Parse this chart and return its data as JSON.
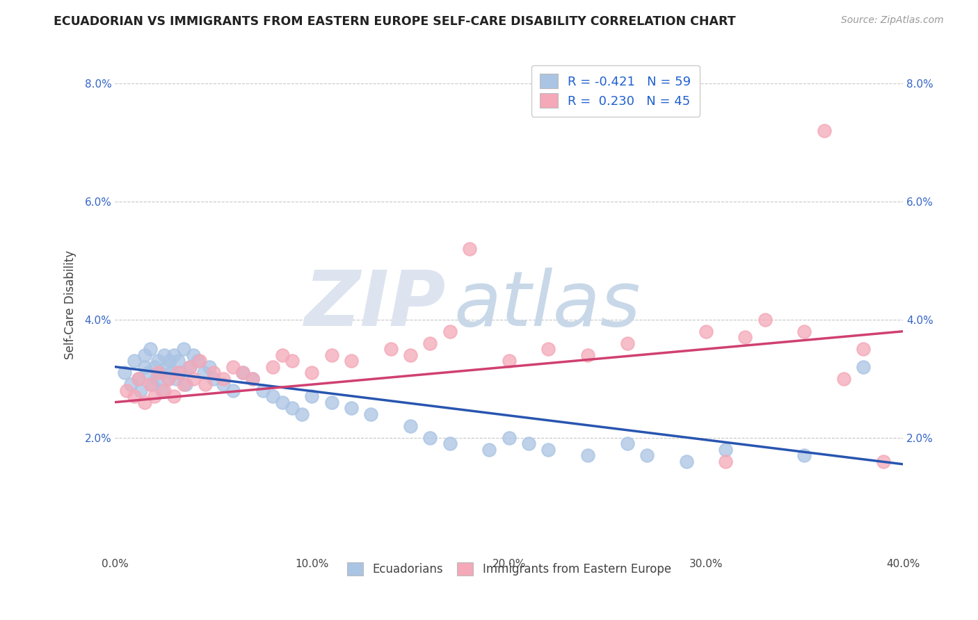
{
  "title": "ECUADORIAN VS IMMIGRANTS FROM EASTERN EUROPE SELF-CARE DISABILITY CORRELATION CHART",
  "source": "Source: ZipAtlas.com",
  "ylabel": "Self-Care Disability",
  "xlim": [
    0.0,
    0.4
  ],
  "ylim": [
    0.0,
    0.085
  ],
  "xticks": [
    0.0,
    0.1,
    0.2,
    0.3,
    0.4
  ],
  "yticks": [
    0.0,
    0.02,
    0.04,
    0.06,
    0.08
  ],
  "ytick_labels": [
    "",
    "2.0%",
    "4.0%",
    "6.0%",
    "8.0%"
  ],
  "xtick_labels": [
    "0.0%",
    "10.0%",
    "20.0%",
    "30.0%",
    "40.0%"
  ],
  "blue_R": -0.421,
  "blue_N": 59,
  "pink_R": 0.23,
  "pink_N": 45,
  "blue_color": "#aac4e4",
  "pink_color": "#f4a8b8",
  "blue_line_color": "#2855b0",
  "pink_line_color": "#d04070",
  "legend_R_color": "#2060d0",
  "background_color": "#ffffff",
  "grid_color": "#c8c8c8",
  "blue_scatter_x": [
    0.005,
    0.008,
    0.01,
    0.012,
    0.013,
    0.015,
    0.015,
    0.017,
    0.018,
    0.019,
    0.02,
    0.021,
    0.022,
    0.023,
    0.024,
    0.025,
    0.026,
    0.027,
    0.028,
    0.029,
    0.03,
    0.031,
    0.032,
    0.033,
    0.035,
    0.036,
    0.038,
    0.04,
    0.042,
    0.045,
    0.048,
    0.05,
    0.055,
    0.06,
    0.065,
    0.07,
    0.075,
    0.08,
    0.085,
    0.09,
    0.095,
    0.1,
    0.11,
    0.12,
    0.13,
    0.15,
    0.16,
    0.17,
    0.19,
    0.2,
    0.21,
    0.22,
    0.24,
    0.26,
    0.27,
    0.29,
    0.31,
    0.35,
    0.38
  ],
  "blue_scatter_y": [
    0.031,
    0.029,
    0.033,
    0.03,
    0.028,
    0.032,
    0.034,
    0.031,
    0.035,
    0.029,
    0.032,
    0.03,
    0.033,
    0.031,
    0.028,
    0.034,
    0.032,
    0.03,
    0.033,
    0.031,
    0.034,
    0.03,
    0.033,
    0.031,
    0.035,
    0.029,
    0.032,
    0.034,
    0.033,
    0.031,
    0.032,
    0.03,
    0.029,
    0.028,
    0.031,
    0.03,
    0.028,
    0.027,
    0.026,
    0.025,
    0.024,
    0.027,
    0.026,
    0.025,
    0.024,
    0.022,
    0.02,
    0.019,
    0.018,
    0.02,
    0.019,
    0.018,
    0.017,
    0.019,
    0.017,
    0.016,
    0.018,
    0.017,
    0.032
  ],
  "pink_scatter_x": [
    0.006,
    0.01,
    0.012,
    0.015,
    0.018,
    0.02,
    0.022,
    0.025,
    0.027,
    0.03,
    0.032,
    0.035,
    0.038,
    0.04,
    0.043,
    0.046,
    0.05,
    0.055,
    0.06,
    0.065,
    0.07,
    0.08,
    0.085,
    0.09,
    0.1,
    0.11,
    0.12,
    0.14,
    0.15,
    0.16,
    0.17,
    0.18,
    0.2,
    0.22,
    0.24,
    0.26,
    0.3,
    0.31,
    0.32,
    0.33,
    0.35,
    0.36,
    0.37,
    0.38,
    0.39
  ],
  "pink_scatter_y": [
    0.028,
    0.027,
    0.03,
    0.026,
    0.029,
    0.027,
    0.031,
    0.028,
    0.03,
    0.027,
    0.031,
    0.029,
    0.032,
    0.03,
    0.033,
    0.029,
    0.031,
    0.03,
    0.032,
    0.031,
    0.03,
    0.032,
    0.034,
    0.033,
    0.031,
    0.034,
    0.033,
    0.035,
    0.034,
    0.036,
    0.038,
    0.052,
    0.033,
    0.035,
    0.034,
    0.036,
    0.038,
    0.016,
    0.037,
    0.04,
    0.038,
    0.072,
    0.03,
    0.035,
    0.016
  ],
  "blue_line_x0": 0.0,
  "blue_line_y0": 0.032,
  "blue_line_x1": 0.4,
  "blue_line_y1": 0.0155,
  "pink_line_x0": 0.0,
  "pink_line_y0": 0.026,
  "pink_line_x1": 0.4,
  "pink_line_y1": 0.038
}
